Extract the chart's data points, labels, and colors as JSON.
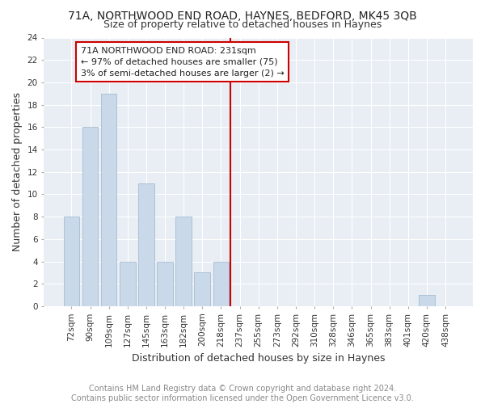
{
  "title": "71A, NORTHWOOD END ROAD, HAYNES, BEDFORD, MK45 3QB",
  "subtitle": "Size of property relative to detached houses in Haynes",
  "xlabel": "Distribution of detached houses by size in Haynes",
  "ylabel": "Number of detached properties",
  "footnote": "Contains HM Land Registry data © Crown copyright and database right 2024.\nContains public sector information licensed under the Open Government Licence v3.0.",
  "bin_labels": [
    "72sqm",
    "90sqm",
    "109sqm",
    "127sqm",
    "145sqm",
    "163sqm",
    "182sqm",
    "200sqm",
    "218sqm",
    "237sqm",
    "255sqm",
    "273sqm",
    "292sqm",
    "310sqm",
    "328sqm",
    "346sqm",
    "365sqm",
    "383sqm",
    "401sqm",
    "420sqm",
    "438sqm"
  ],
  "bar_values": [
    8,
    16,
    19,
    4,
    11,
    4,
    8,
    3,
    4,
    0,
    0,
    0,
    0,
    0,
    0,
    0,
    0,
    0,
    0,
    1,
    0
  ],
  "bar_color": "#c9d9ea",
  "bar_edge_color": "#9ab5cc",
  "property_line_x": 231,
  "annotation_text": "71A NORTHWOOD END ROAD: 231sqm\n← 97% of detached houses are smaller (75)\n3% of semi-detached houses are larger (2) →",
  "annotation_box_color": "white",
  "annotation_box_edge_color": "#cc0000",
  "line_color": "#cc0000",
  "ylim": [
    0,
    24
  ],
  "yticks": [
    0,
    2,
    4,
    6,
    8,
    10,
    12,
    14,
    16,
    18,
    20,
    22,
    24
  ],
  "title_fontsize": 10,
  "subtitle_fontsize": 9,
  "xlabel_fontsize": 9,
  "ylabel_fontsize": 9,
  "tick_fontsize": 7.5,
  "annotation_fontsize": 8,
  "footnote_fontsize": 7,
  "bg_color": "#ffffff",
  "plot_bg_color": "#e8eef4"
}
